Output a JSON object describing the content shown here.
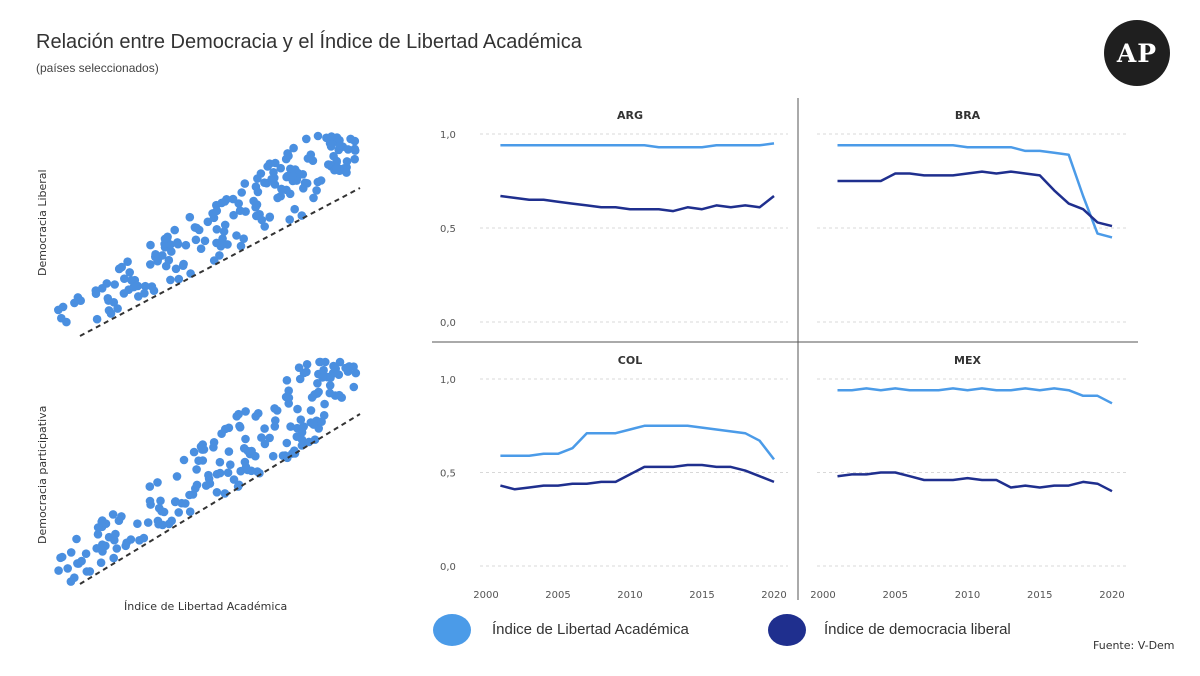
{
  "title": "Relación entre Democracia y el Índice de Libertad Académica",
  "subtitle": "(países seleccionados)",
  "logo": "AP",
  "source": "Fuente: V-Dem",
  "colors": {
    "academic": "#4b9be8",
    "liberal": "#1f2f8e",
    "scatter": "#4a8fe0",
    "trend": "#333333"
  },
  "legend": {
    "academic": "Índice de Libertad Académica",
    "liberal": "Índice de democracia liberal"
  },
  "scatter_axes": {
    "x_label": "Índice de Libertad Académica",
    "top_y_label": "Democracia Liberal",
    "bottom_y_label": "Democracia participativa"
  },
  "chart_data": [
    {
      "type": "scatter",
      "panel": "top",
      "ylabel": "Democracia Liberal",
      "xlabel": "Índice de Libertad Académica",
      "trend": "dashed linear",
      "seed": 7
    },
    {
      "type": "scatter",
      "panel": "bottom",
      "ylabel": "Democracia participativa",
      "xlabel": "Índice de Libertad Académica",
      "trend": "dashed linear",
      "seed": 19
    },
    {
      "type": "line",
      "small_multiples": true,
      "x_ticks": [
        2000,
        2005,
        2010,
        2015,
        2020
      ],
      "y_ticks": [
        "1,0",
        "0,5",
        "0,0"
      ],
      "xlim": [
        2000,
        2020
      ],
      "ylim": [
        0,
        1
      ],
      "panels": [
        {
          "name": "ARG",
          "x": [
            2001,
            2002,
            2003,
            2004,
            2005,
            2006,
            2007,
            2008,
            2009,
            2010,
            2011,
            2012,
            2013,
            2014,
            2015,
            2016,
            2017,
            2018,
            2019,
            2020
          ],
          "series": [
            {
              "name": "Índice de Libertad Académica",
              "key": "academic",
              "values": [
                0.94,
                0.94,
                0.94,
                0.94,
                0.94,
                0.94,
                0.94,
                0.94,
                0.94,
                0.94,
                0.94,
                0.93,
                0.93,
                0.93,
                0.93,
                0.94,
                0.94,
                0.94,
                0.94,
                0.95
              ]
            },
            {
              "name": "Índice de democracia liberal",
              "key": "liberal",
              "values": [
                0.67,
                0.66,
                0.65,
                0.65,
                0.64,
                0.63,
                0.62,
                0.61,
                0.61,
                0.6,
                0.6,
                0.6,
                0.59,
                0.61,
                0.6,
                0.62,
                0.61,
                0.62,
                0.61,
                0.67
              ]
            }
          ]
        },
        {
          "name": "BRA",
          "x": [
            2001,
            2002,
            2003,
            2004,
            2005,
            2006,
            2007,
            2008,
            2009,
            2010,
            2011,
            2012,
            2013,
            2014,
            2015,
            2016,
            2017,
            2018,
            2019,
            2020
          ],
          "series": [
            {
              "name": "Índice de Libertad Académica",
              "key": "academic",
              "values": [
                0.94,
                0.94,
                0.94,
                0.94,
                0.94,
                0.94,
                0.94,
                0.94,
                0.94,
                0.93,
                0.93,
                0.93,
                0.93,
                0.91,
                0.91,
                0.9,
                0.89,
                0.67,
                0.47,
                0.45
              ]
            },
            {
              "name": "Índice de democracia liberal",
              "key": "liberal",
              "values": [
                0.75,
                0.75,
                0.75,
                0.75,
                0.79,
                0.79,
                0.78,
                0.78,
                0.78,
                0.79,
                0.8,
                0.79,
                0.8,
                0.79,
                0.78,
                0.7,
                0.63,
                0.6,
                0.53,
                0.51
              ]
            }
          ]
        },
        {
          "name": "COL",
          "x": [
            2001,
            2002,
            2003,
            2004,
            2005,
            2006,
            2007,
            2008,
            2009,
            2010,
            2011,
            2012,
            2013,
            2014,
            2015,
            2016,
            2017,
            2018,
            2019,
            2020
          ],
          "series": [
            {
              "name": "Índice de Libertad Académica",
              "key": "academic",
              "values": [
                0.59,
                0.59,
                0.59,
                0.6,
                0.6,
                0.63,
                0.71,
                0.71,
                0.71,
                0.73,
                0.75,
                0.75,
                0.75,
                0.75,
                0.74,
                0.73,
                0.72,
                0.71,
                0.67,
                0.57
              ]
            },
            {
              "name": "Índice de democracia liberal",
              "key": "liberal",
              "values": [
                0.43,
                0.41,
                0.42,
                0.43,
                0.43,
                0.44,
                0.44,
                0.45,
                0.45,
                0.49,
                0.53,
                0.53,
                0.53,
                0.54,
                0.54,
                0.53,
                0.53,
                0.51,
                0.48,
                0.45
              ]
            }
          ]
        },
        {
          "name": "MEX",
          "x": [
            2001,
            2002,
            2003,
            2004,
            2005,
            2006,
            2007,
            2008,
            2009,
            2010,
            2011,
            2012,
            2013,
            2014,
            2015,
            2016,
            2017,
            2018,
            2019,
            2020
          ],
          "series": [
            {
              "name": "Índice de Libertad Académica",
              "key": "academic",
              "values": [
                0.94,
                0.94,
                0.95,
                0.94,
                0.95,
                0.94,
                0.94,
                0.94,
                0.95,
                0.94,
                0.95,
                0.94,
                0.94,
                0.95,
                0.94,
                0.95,
                0.94,
                0.91,
                0.91,
                0.87
              ]
            },
            {
              "name": "Índice de democracia liberal",
              "key": "liberal",
              "values": [
                0.48,
                0.49,
                0.49,
                0.5,
                0.5,
                0.48,
                0.46,
                0.46,
                0.46,
                0.47,
                0.46,
                0.46,
                0.42,
                0.43,
                0.42,
                0.43,
                0.43,
                0.45,
                0.44,
                0.4
              ]
            }
          ]
        }
      ]
    }
  ]
}
